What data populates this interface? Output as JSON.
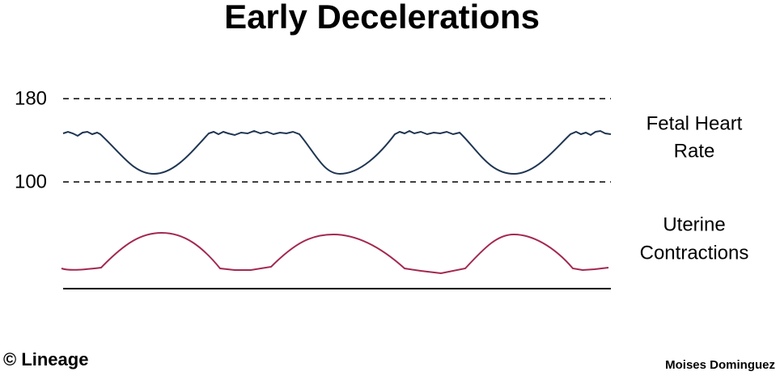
{
  "header": {
    "title": "Early Decelerations"
  },
  "scale": {
    "upper": "180",
    "lower": "100"
  },
  "labels": {
    "fetal_heart_rate": [
      "Fetal Heart",
      "Rate"
    ],
    "uterine_contractions": [
      "Uterine",
      "Contractions"
    ]
  },
  "footer": {
    "copyright": "© Lineage",
    "author": "Moises Dominguez"
  }
}
